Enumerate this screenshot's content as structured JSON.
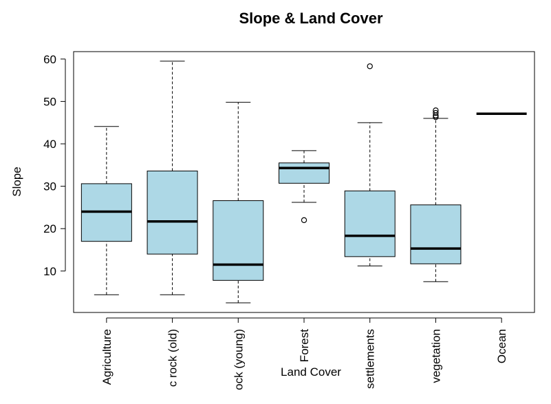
{
  "chart_data": {
    "type": "boxplot",
    "title": "Slope & Land Cover",
    "xlabel": "Land Cover",
    "ylabel": "Slope",
    "ylim": [
      0,
      62
    ],
    "yticks": [
      10,
      20,
      30,
      40,
      50,
      60
    ],
    "grid": false,
    "box_color": "#add8e6",
    "categories": [
      "Agriculture",
      "c rock (old)",
      "ock (young)",
      "Forest",
      "settlements",
      "vegetation",
      "Ocean"
    ],
    "boxes": [
      {
        "category": "Agriculture",
        "whisker_low": 4.4,
        "q1": 17.0,
        "median": 24.0,
        "q3": 30.6,
        "whisker_high": 44.1,
        "outliers": []
      },
      {
        "category": "c rock (old)",
        "whisker_low": 4.4,
        "q1": 14.0,
        "median": 21.7,
        "q3": 33.6,
        "whisker_high": 59.5,
        "outliers": []
      },
      {
        "category": "ock (young)",
        "whisker_low": 2.5,
        "q1": 7.8,
        "median": 11.5,
        "q3": 26.6,
        "whisker_high": 49.8,
        "outliers": []
      },
      {
        "category": "Forest",
        "whisker_low": 26.2,
        "q1": 30.7,
        "median": 34.3,
        "q3": 35.5,
        "whisker_high": 38.4,
        "outliers": [
          22.0
        ]
      },
      {
        "category": "settlements",
        "whisker_low": 11.2,
        "q1": 13.4,
        "median": 18.3,
        "q3": 28.9,
        "whisker_high": 45.0,
        "outliers": [
          58.3
        ]
      },
      {
        "category": "vegetation",
        "whisker_low": 7.5,
        "q1": 11.7,
        "median": 15.3,
        "q3": 25.6,
        "whisker_high": 46.0,
        "outliers": [
          46.3,
          46.7,
          47.3,
          47.9
        ]
      },
      {
        "category": "Ocean",
        "whisker_low": 47.1,
        "q1": 47.1,
        "median": 47.1,
        "q3": 47.1,
        "whisker_high": 47.1,
        "outliers": []
      }
    ]
  }
}
